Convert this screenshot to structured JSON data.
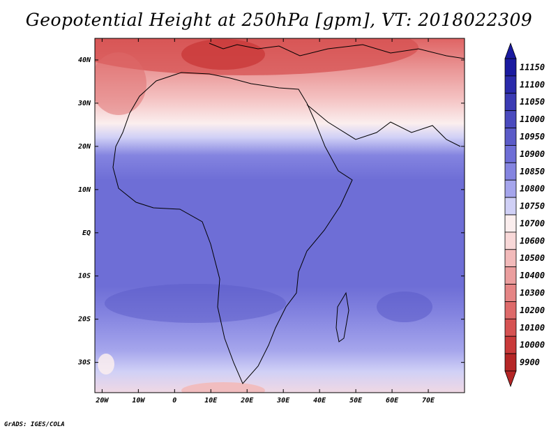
{
  "title": "Geopotential Height at 250hPa [gpm], VT: 2018022309",
  "credit": "GrADS: IGES/COLA",
  "map": {
    "lon_ticks": [
      {
        "value": -20,
        "label": "20W"
      },
      {
        "value": -10,
        "label": "10W"
      },
      {
        "value": 0,
        "label": "0"
      },
      {
        "value": 10,
        "label": "10E"
      },
      {
        "value": 20,
        "label": "20E"
      },
      {
        "value": 30,
        "label": "30E"
      },
      {
        "value": 40,
        "label": "40E"
      },
      {
        "value": 50,
        "label": "50E"
      },
      {
        "value": 60,
        "label": "60E"
      },
      {
        "value": 70,
        "label": "70E"
      }
    ],
    "lat_ticks": [
      {
        "value": 40,
        "label": "40N"
      },
      {
        "value": 30,
        "label": "30N"
      },
      {
        "value": 20,
        "label": "20N"
      },
      {
        "value": 10,
        "label": "10N"
      },
      {
        "value": 0,
        "label": "EQ"
      },
      {
        "value": -10,
        "label": "10S"
      },
      {
        "value": -20,
        "label": "20S"
      },
      {
        "value": -30,
        "label": "30S"
      }
    ],
    "lon_range": [
      -22,
      80
    ],
    "lat_range": [
      -37,
      45
    ]
  },
  "colorbar": {
    "levels": [
      {
        "label": "11150",
        "color": "#1a1aa0"
      },
      {
        "label": "11100",
        "color": "#2a2aaa"
      },
      {
        "label": "11050",
        "color": "#3b3bb4"
      },
      {
        "label": "11000",
        "color": "#4a4abe"
      },
      {
        "label": "10950",
        "color": "#5b5bc8"
      },
      {
        "label": "10900",
        "color": "#6e6ed6"
      },
      {
        "label": "10850",
        "color": "#8484e0"
      },
      {
        "label": "10800",
        "color": "#a5a5ec"
      },
      {
        "label": "10750",
        "color": "#d0d0f6"
      },
      {
        "label": "10700",
        "color": "#fbeeee"
      },
      {
        "label": "10600",
        "color": "#f8d8d8"
      },
      {
        "label": "10500",
        "color": "#f2baba"
      },
      {
        "label": "10400",
        "color": "#eb9e9e"
      },
      {
        "label": "10300",
        "color": "#e58585"
      },
      {
        "label": "10200",
        "color": "#de6a6a"
      },
      {
        "label": "10100",
        "color": "#d65252"
      },
      {
        "label": "10000",
        "color": "#c93a3a"
      },
      {
        "label": "9900",
        "color": "#b52626"
      }
    ]
  }
}
